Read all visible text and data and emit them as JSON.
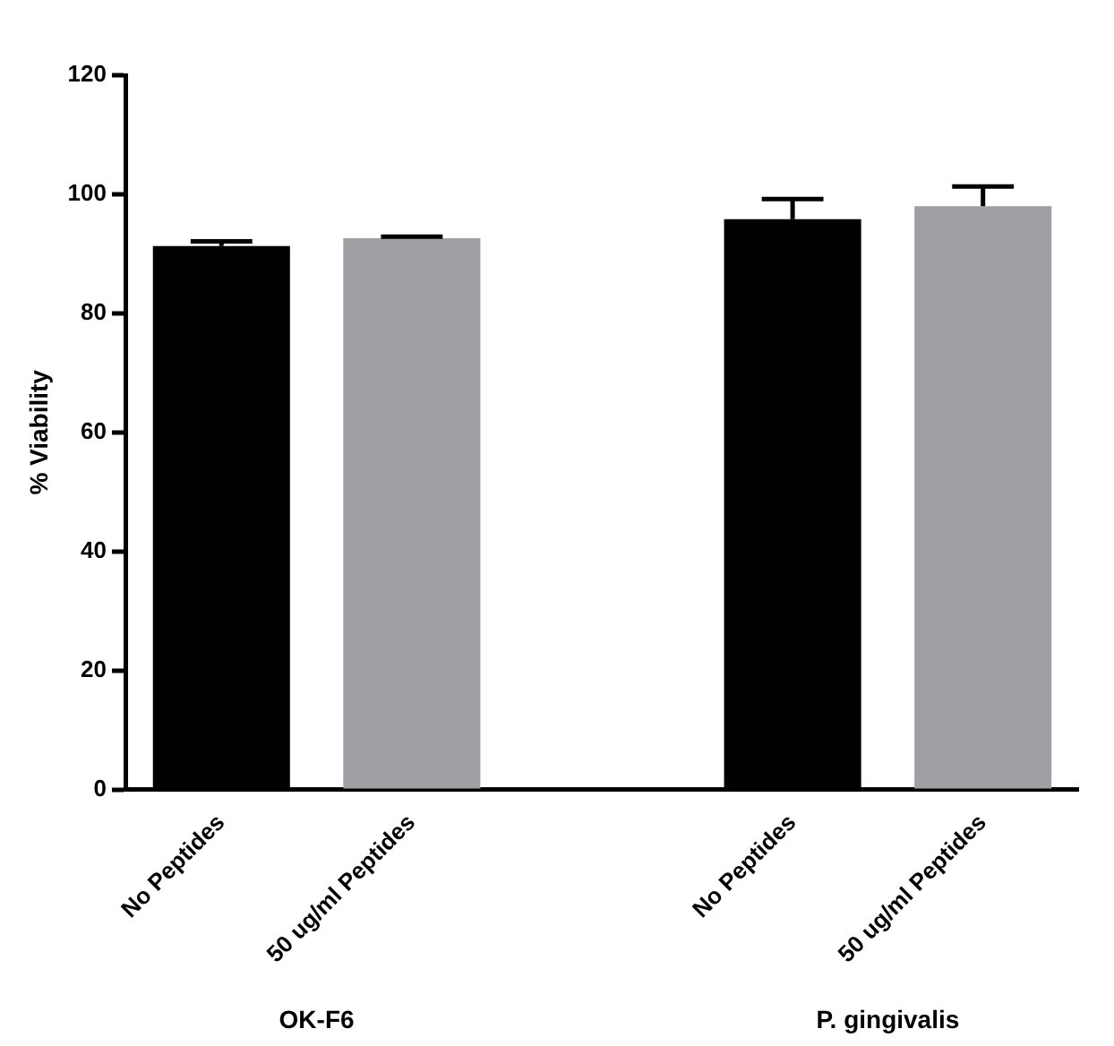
{
  "chart_data": {
    "type": "bar",
    "ylabel": "% Viability",
    "categories": [
      "No Peptides",
      "50 ug/ml Peptides",
      null,
      "No Peptides",
      "50 ug/ml Peptides"
    ],
    "values": [
      91.3,
      92.6,
      null,
      95.8,
      98.0
    ],
    "colors": [
      "#000000",
      "#a0a0a4",
      "#ffffff",
      "#000000",
      "#a0a0a4"
    ],
    "errors": [
      [
        91.3,
        92.1
      ],
      [
        92.6,
        92.9
      ],
      null,
      [
        95.8,
        99.2
      ],
      [
        98.0,
        101.3
      ]
    ],
    "ylim": [
      0,
      120
    ],
    "yticks": [
      0,
      20,
      40,
      60,
      80,
      100,
      120
    ],
    "grid": false,
    "legend": false,
    "annotations": [
      "OK-F6",
      "P. gingivalis"
    ]
  }
}
